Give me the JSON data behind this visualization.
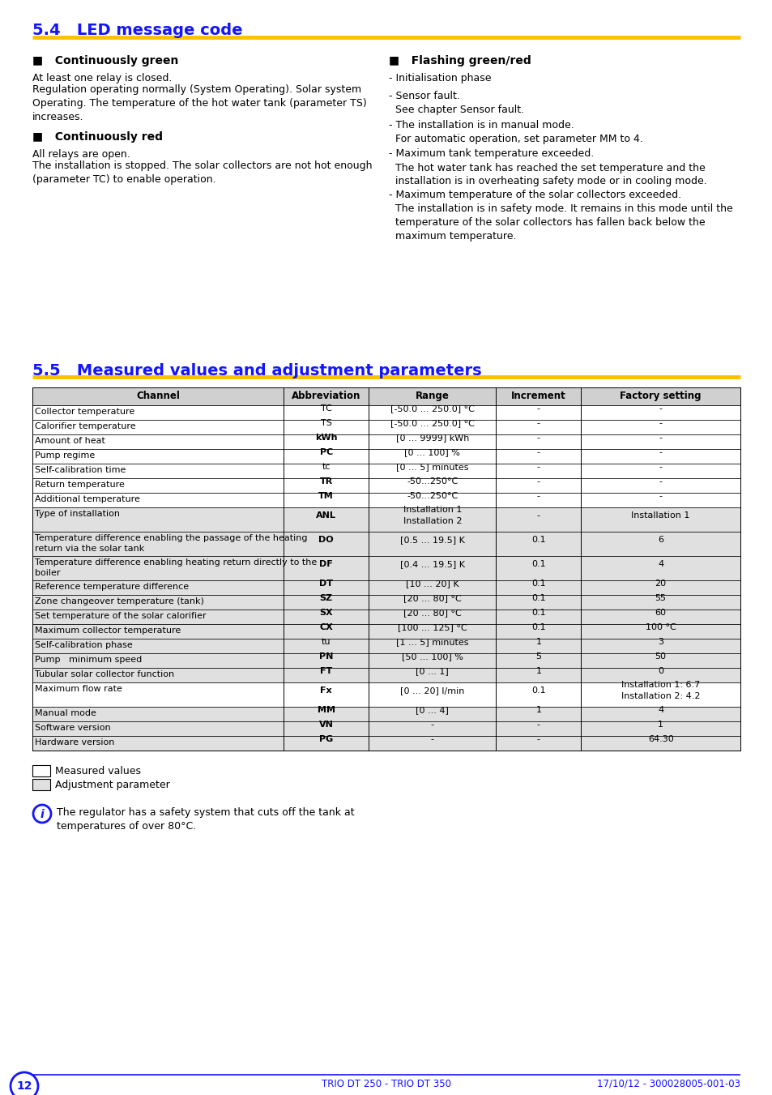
{
  "title_54": "5.4   LED message code",
  "title_55": "5.5   Measured values and adjustment parameters",
  "section_color": "#1414FF",
  "line_color": "#FFC000",
  "bg_color": "#FFFFFF",
  "page_num": "12",
  "footer_center": "TRIO DT 250 - TRIO DT 350",
  "footer_right": "17/10/12 - 300028005-001-03",
  "table_headers": [
    "Channel",
    "Abbreviation",
    "Range",
    "Increment",
    "Factory setting"
  ],
  "table_rows": [
    [
      "Collector temperature",
      "TC",
      "[-50.0 ... 250.0] °C",
      "-",
      "-",
      "white"
    ],
    [
      "Calorifier temperature",
      "TS",
      "[-50.0 ... 250.0] °C",
      "-",
      "-",
      "white"
    ],
    [
      "Amount of heat",
      "kWh",
      "[0 ... 9999] kWh",
      "-",
      "-",
      "white"
    ],
    [
      "Pump regime",
      "PC",
      "[0 ... 100] %",
      "-",
      "-",
      "white"
    ],
    [
      "Self-calibration time",
      "tc",
      "[0 ... 5] minutes",
      "-",
      "-",
      "white"
    ],
    [
      "Return temperature",
      "TR",
      "-50...250°C",
      "-",
      "-",
      "white"
    ],
    [
      "Additional temperature",
      "TM",
      "-50...250°C",
      "-",
      "-",
      "white"
    ],
    [
      "Type of installation",
      "ANL",
      "Installation 1\nInstallation 2",
      "-",
      "Installation 1",
      "gray"
    ],
    [
      "Temperature difference enabling the passage of the heating\nreturn via the solar tank",
      "DO",
      "[0.5 ... 19.5] K",
      "0.1",
      "6",
      "gray"
    ],
    [
      "Temperature difference enabling heating return directly to the\nboiler",
      "DF",
      "[0.4 ... 19.5] K",
      "0.1",
      "4",
      "gray"
    ],
    [
      "Reference temperature difference",
      "DT",
      "[10 ... 20] K",
      "0.1",
      "20",
      "gray"
    ],
    [
      "Zone changeover temperature (tank)",
      "SZ",
      "[20 ... 80] °C",
      "0.1",
      "55",
      "gray"
    ],
    [
      "Set temperature of the solar calorifier",
      "SX",
      "[20 ... 80] °C",
      "0.1",
      "60",
      "gray"
    ],
    [
      "Maximum collector temperature",
      "CX",
      "[100 ... 125] °C",
      "0.1",
      "100 °C",
      "gray"
    ],
    [
      "Self-calibration phase",
      "tu",
      "[1 ... 5] minutes",
      "1",
      "3",
      "gray"
    ],
    [
      "Pump   minimum speed",
      "PN",
      "[50 ... 100] %",
      "5",
      "50",
      "gray"
    ],
    [
      "Tubular solar collector function",
      "FT",
      "[0 ... 1]",
      "1",
      "0",
      "gray"
    ],
    [
      "Maximum flow rate",
      "Fx",
      "[0 ... 20] l/min",
      "0.1",
      "Installation 1: 6.7\nInstallation 2: 4.2",
      "white"
    ],
    [
      "Manual mode",
      "MM",
      "[0 ... 4]",
      "1",
      "4",
      "gray"
    ],
    [
      "Software version",
      "VN",
      "-",
      "-",
      "1",
      "gray"
    ],
    [
      "Hardware version",
      "PG",
      "-",
      "-",
      "64.30",
      "gray"
    ]
  ],
  "abbrev_bold": [
    "kWh",
    "PC",
    "TR",
    "TM",
    "ANL",
    "DO",
    "DF",
    "DT",
    "SZ",
    "SX",
    "CX",
    "PN",
    "FT",
    "Fx",
    "MM",
    "VN",
    "PG"
  ],
  "legend_measured": "Measured values",
  "legend_adjustment": "Adjustment parameter",
  "note_text": "The regulator has a safety system that cuts off the tank at\ntemperatures of over 80°C."
}
